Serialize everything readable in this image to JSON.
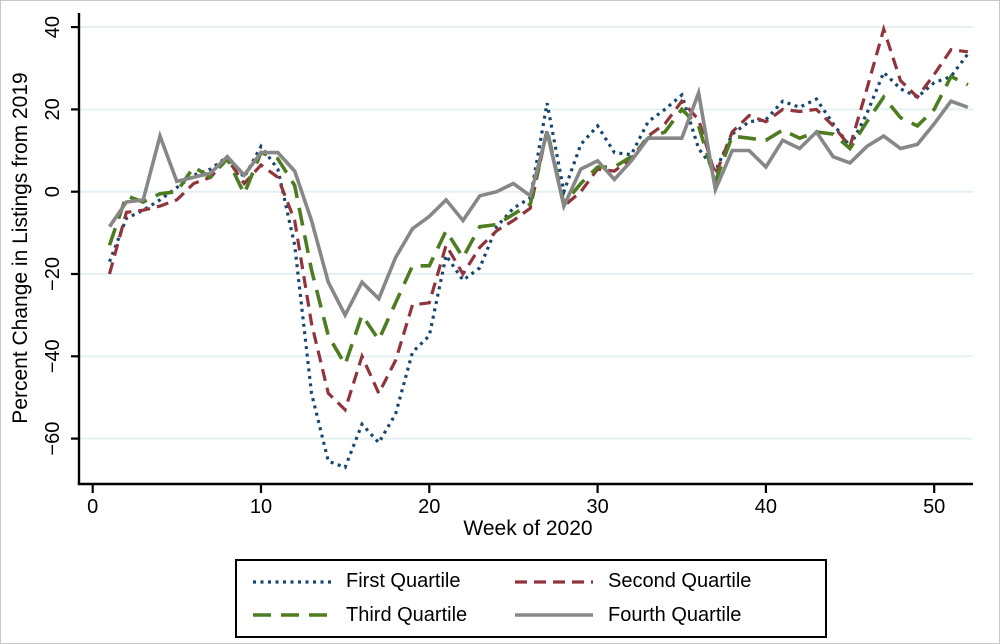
{
  "chart_data": {
    "type": "line",
    "title": "",
    "xlabel": "Week of 2020",
    "ylabel": "Percent Change in Listings from 2019",
    "x_range": [
      0,
      52
    ],
    "ylim": [
      -75,
      42
    ],
    "grid": "horizontal-only",
    "gridline_color": "#e4f0f3",
    "axis_color": "#000000",
    "legend_position": "bottom-center-boxed",
    "x_ticks": [
      {
        "v": 0,
        "label": "0"
      },
      {
        "v": 10,
        "label": "10"
      },
      {
        "v": 20,
        "label": "20"
      },
      {
        "v": 30,
        "label": "30"
      },
      {
        "v": 40,
        "label": "40"
      },
      {
        "v": 50,
        "label": "50"
      }
    ],
    "y_ticks": [
      {
        "v": 40,
        "label": "40"
      },
      {
        "v": 20,
        "label": "20"
      },
      {
        "v": 0,
        "label": "0"
      },
      {
        "v": -20,
        "label": "−20"
      },
      {
        "v": -40,
        "label": "−40"
      },
      {
        "v": -60,
        "label": "−60"
      }
    ],
    "weeks": [
      1,
      2,
      3,
      4,
      5,
      6,
      7,
      8,
      9,
      10,
      11,
      12,
      13,
      14,
      15,
      16,
      17,
      18,
      19,
      20,
      21,
      22,
      23,
      24,
      25,
      26,
      27,
      28,
      29,
      30,
      31,
      32,
      33,
      34,
      35,
      36,
      37,
      38,
      39,
      40,
      41,
      42,
      43,
      44,
      45,
      46,
      47,
      48,
      49,
      50,
      51,
      52
    ],
    "series": [
      {
        "name": "First Quartile",
        "color": "#1a476f",
        "dash": "dotted",
        "values": [
          -17,
          -6.5,
          -4.5,
          -2,
          1,
          4,
          5.5,
          8.5,
          3.5,
          11,
          5.5,
          -13,
          -49,
          -65.5,
          -67,
          -56.5,
          -61,
          -54,
          -39,
          -35,
          -15.5,
          -21.5,
          -18.5,
          -8.5,
          -4,
          -1.5,
          21.5,
          0,
          11.5,
          16,
          9.5,
          9,
          17,
          20,
          23.5,
          10.5,
          5,
          14,
          17,
          17.5,
          22,
          20.5,
          22.5,
          16.5,
          11,
          19,
          29,
          25,
          23,
          26.5,
          28,
          33.5
        ]
      },
      {
        "name": "Second Quartile",
        "color": "#90353b",
        "dash": "dashed",
        "values": [
          -20,
          -5,
          -4.5,
          -3.5,
          -2,
          2,
          3.5,
          8,
          2,
          6.5,
          3.5,
          -7,
          -32,
          -49,
          -53,
          -40,
          -49,
          -41,
          -27.5,
          -27,
          -13,
          -20,
          -13.5,
          -9.5,
          -7,
          -4,
          15,
          -3.5,
          0,
          5.5,
          5,
          8,
          13.5,
          16.5,
          22,
          17.5,
          4,
          14.5,
          18.5,
          17,
          20,
          19.5,
          20,
          16,
          11,
          25,
          39.5,
          27,
          23,
          28.5,
          34.5,
          34
        ]
      },
      {
        "name": "Third Quartile",
        "color": "#4e7c21",
        "dash": "longdash",
        "values": [
          -13,
          -1,
          -2.5,
          -0.5,
          0,
          6,
          3.5,
          8,
          -0.5,
          9.5,
          8,
          1.5,
          -19,
          -35,
          -42,
          -30,
          -36,
          -27,
          -18,
          -18,
          -9.5,
          -16,
          -8.5,
          -8,
          -5.5,
          -3,
          15,
          -3,
          2,
          6,
          6,
          8.5,
          13,
          14.5,
          20,
          16,
          2.5,
          13.5,
          13,
          12.5,
          15,
          13,
          14.5,
          14,
          10.5,
          17,
          23,
          18,
          16,
          20,
          28,
          26
        ]
      },
      {
        "name": "Fourth Quartile",
        "color": "#878787",
        "dash": "solid",
        "values": [
          -8.5,
          -2.5,
          -2,
          13.5,
          2.5,
          3.5,
          4.5,
          8.5,
          4,
          9.5,
          9.5,
          5,
          -7,
          -22,
          -30,
          -22,
          -26,
          -16,
          -9,
          -6,
          -2,
          -7,
          -1,
          0,
          2,
          -1,
          14.5,
          -3.5,
          5.5,
          7.5,
          3,
          7.5,
          13,
          13,
          13,
          24,
          0.5,
          10,
          10,
          6,
          12.5,
          10.5,
          14.5,
          8.5,
          7,
          11,
          13.5,
          10.5,
          11.5,
          16.5,
          22,
          20.5
        ]
      }
    ]
  },
  "legend": {
    "items": [
      {
        "label": "First Quartile"
      },
      {
        "label": "Second Quartile"
      },
      {
        "label": "Third Quartile"
      },
      {
        "label": "Fourth Quartile"
      }
    ]
  }
}
